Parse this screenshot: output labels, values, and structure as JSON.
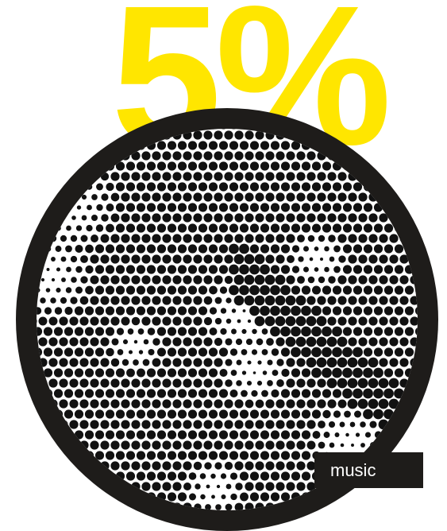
{
  "headline": {
    "text": "5%",
    "color": "#ffe600"
  },
  "disc": {
    "ring_color": "#1e1c1a",
    "dot_color": "#111111",
    "background_color": "#ffffff"
  },
  "tag": {
    "label": "music"
  }
}
